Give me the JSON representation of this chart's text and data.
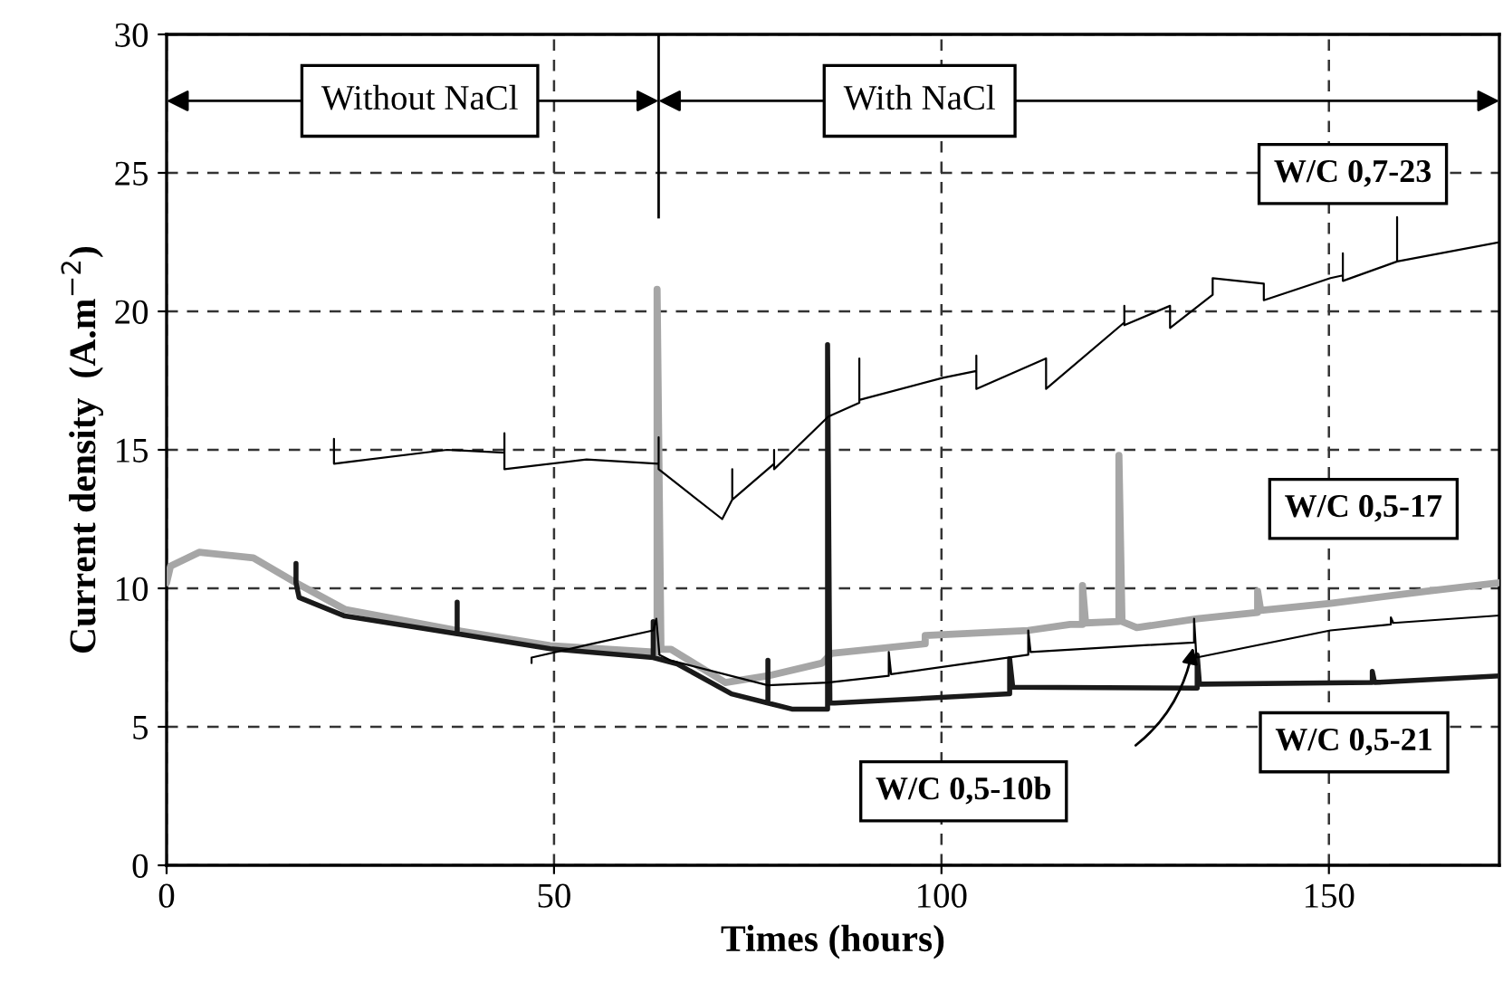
{
  "chart_data": {
    "type": "line",
    "xlabel": "Times (hours)",
    "ylabel": "Current density  (A.m$^{−2}$)",
    "xlim": [
      0,
      172
    ],
    "ylim": [
      0,
      30
    ],
    "xticks": [
      0,
      50,
      100,
      150
    ],
    "yticks": [
      0,
      5,
      10,
      15,
      20,
      25,
      30
    ],
    "grid": true,
    "legend": false,
    "line_style": "solid",
    "marker": "none",
    "ref_lines": [
      {
        "axis": "x",
        "value": 63.5,
        "color": "#000000"
      }
    ],
    "annotations": [
      "Without NaCl",
      "With NaCl"
    ],
    "series": [
      {
        "name": "W/C 0,7-23",
        "color": "#000000",
        "x": [
          21.6,
          21.6,
          21.6,
          36.2,
          43.6,
          43.6,
          43.6,
          54.2,
          63.5,
          63.5,
          63.5,
          71.7,
          73,
          73,
          73,
          78.4,
          78.4,
          78.4,
          85.4,
          89.4,
          89.4,
          89.4,
          100.2,
          104.5,
          104.5,
          104.5,
          113.5,
          113.5,
          123.6,
          123.6,
          123.6,
          129.5,
          129.5,
          135,
          135,
          141.6,
          141.6,
          150.2,
          151.8,
          151.8,
          151.8,
          158.8,
          158.8,
          158.8,
          172,
          172
        ],
        "values": [
          14.5,
          15.4,
          14.5,
          15.0,
          14.9,
          15.6,
          14.3,
          14.65,
          14.5,
          15.45,
          14.3,
          12.5,
          13.2,
          14.3,
          13.2,
          14.5,
          15.0,
          14.3,
          16.2,
          16.7,
          18.3,
          16.8,
          17.6,
          17.85,
          18.4,
          17.2,
          18.3,
          17.2,
          19.6,
          20.2,
          19.5,
          20.2,
          19.4,
          20.6,
          21.2,
          21.0,
          20.4,
          21.2,
          21.3,
          22.1,
          21.1,
          21.8,
          23.4,
          21.8,
          22.5,
          21.5
        ]
      },
      {
        "name": "W/C 0,5-17",
        "color": "#a6a6a6",
        "x": [
          0,
          0.5,
          4.2,
          11.2,
          16.7,
          23,
          37,
          49.5,
          62.8,
          63.3,
          63.3,
          63.8,
          65.1,
          72.1,
          77.6,
          84.6,
          85.8,
          97.9,
          97.9,
          111.2,
          116.6,
          118.2,
          118.2,
          118.6,
          122.9,
          122.9,
          123.3,
          125.2,
          133,
          140.8,
          140.8,
          141.2,
          150.2,
          162.7,
          172
        ],
        "values": [
          10.2,
          10.8,
          11.3,
          11.1,
          10.2,
          9.24,
          8.5,
          7.93,
          7.7,
          7.7,
          20.8,
          7.8,
          7.8,
          6.6,
          6.84,
          7.3,
          7.65,
          8.0,
          8.3,
          8.48,
          8.7,
          8.7,
          10.1,
          8.75,
          8.8,
          14.8,
          8.8,
          8.58,
          8.9,
          9.13,
          9.9,
          9.2,
          9.46,
          9.9,
          10.2
        ]
      },
      {
        "name": "W/C 0,5-21",
        "color": "#1a1a1a",
        "x": [
          16.7,
          16.7,
          17.1,
          23,
          37.5,
          37.5,
          37.5,
          49.5,
          62.8,
          62.8,
          62.8,
          65.9,
          72.9,
          77.6,
          77.6,
          77.6,
          80.7,
          85.3,
          85.3,
          85.6,
          86.2,
          108.8,
          108.8,
          109.2,
          133,
          133,
          133.3,
          155.6,
          155.6,
          155.9,
          172
        ],
        "values": [
          10.9,
          10.2,
          9.67,
          9.0,
          8.36,
          9.5,
          8.36,
          7.82,
          7.5,
          8.8,
          7.5,
          7.27,
          6.19,
          5.86,
          7.4,
          5.86,
          5.64,
          5.64,
          18.8,
          5.86,
          5.86,
          6.19,
          7.46,
          6.43,
          6.4,
          7.6,
          6.54,
          6.6,
          7.0,
          6.6,
          6.84
        ]
      },
      {
        "name": "W/C 0,5-10b",
        "color": "#000000",
        "x": [
          47.1,
          47.1,
          55,
          62.8,
          63.2,
          63.6,
          65,
          77.6,
          85.3,
          93.2,
          93.2,
          93.5,
          111.2,
          111.2,
          111.5,
          125.2,
          132.6,
          132.6,
          132.9,
          150.2,
          158,
          158,
          158.3,
          172
        ],
        "values": [
          7.3,
          7.5,
          8.0,
          8.48,
          8.9,
          7.6,
          7.4,
          6.5,
          6.6,
          6.84,
          7.7,
          6.9,
          7.6,
          8.48,
          7.7,
          7.93,
          8.04,
          8.9,
          7.5,
          8.48,
          8.7,
          8.95,
          8.75,
          9.02
        ]
      }
    ]
  }
}
